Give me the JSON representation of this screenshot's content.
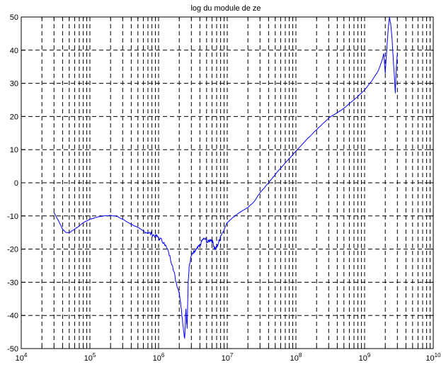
{
  "chart_data": {
    "type": "line",
    "title": "log du module de ze",
    "xscale": "log",
    "xlim": [
      10000,
      10000000000
    ],
    "ylim": [
      -50,
      50
    ],
    "grid": true,
    "x_ticks": [
      {
        "value": 10000,
        "base": "10",
        "exp": "4"
      },
      {
        "value": 100000,
        "base": "10",
        "exp": "5"
      },
      {
        "value": 1000000,
        "base": "10",
        "exp": "6"
      },
      {
        "value": 10000000,
        "base": "10",
        "exp": "7"
      },
      {
        "value": 100000000,
        "base": "10",
        "exp": "8"
      },
      {
        "value": 1000000000,
        "base": "10",
        "exp": "9"
      },
      {
        "value": 10000000000,
        "base": "10",
        "exp": "10"
      }
    ],
    "y_ticks": [
      -50,
      -40,
      -30,
      -20,
      -10,
      0,
      10,
      20,
      30,
      40,
      50
    ],
    "series": [
      {
        "color": "#0000ff",
        "x": [
          30000,
          35000,
          40000,
          45000,
          50000,
          60000,
          70000,
          80000,
          100000,
          130000,
          160000,
          200000,
          250000,
          300000,
          400000,
          500000,
          600000,
          700000,
          800000,
          900000,
          1000000,
          1200000,
          1400000,
          1600000,
          1800000,
          2000000,
          2150000,
          2300000,
          2400000,
          2500000,
          2600000,
          2700000,
          2800000,
          3000000,
          3300000,
          3600000,
          4000000,
          4400000,
          4800000,
          5200000,
          5700000,
          6200000,
          6600000,
          7000000,
          7500000,
          8000000,
          9000000,
          10000000,
          12000000,
          15000000,
          18000000,
          20000000,
          25000000,
          30000000,
          40000000,
          50000000,
          70000000,
          100000000,
          150000000,
          200000000,
          300000000,
          500000000,
          700000000,
          1000000000,
          1300000000,
          1600000000,
          1800000000,
          1900000000,
          2000000000,
          2100000000,
          2200000000,
          2300000000,
          2400000000,
          2500000000,
          2600000000,
          2700000000,
          2800000000,
          2900000000,
          3000000000
        ],
        "y": [
          -9,
          -11.5,
          -14,
          -15,
          -15,
          -14,
          -13,
          -12,
          -11,
          -10.3,
          -10,
          -9.8,
          -10.2,
          -11,
          -12.5,
          -13.5,
          -14.5,
          -15,
          -15.5,
          -16,
          -16.5,
          -18,
          -21,
          -25,
          -30,
          -33,
          -38,
          -44,
          -47,
          -38,
          -44,
          -30,
          -25,
          -22,
          -21,
          -20,
          -19,
          -17,
          -17,
          -18,
          -17,
          -18,
          -20,
          -19.5,
          -18,
          -16,
          -14,
          -12,
          -10.5,
          -9,
          -8,
          -7.5,
          -5.5,
          -3,
          0,
          2.5,
          6,
          9.5,
          13.5,
          16,
          19.5,
          22.5,
          25,
          28,
          31,
          34,
          37,
          39,
          33,
          40,
          46,
          50,
          48,
          44,
          38,
          33,
          27,
          35,
          39
        ]
      }
    ]
  }
}
